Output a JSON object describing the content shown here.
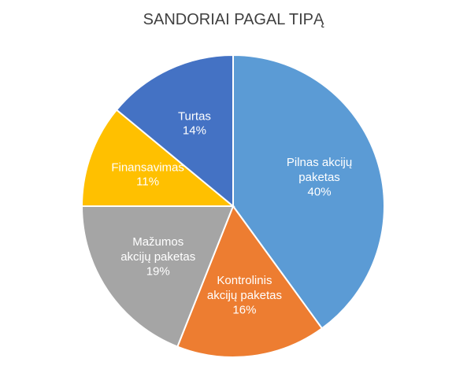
{
  "chart_data": {
    "type": "pie",
    "title": "SANDORIAI PAGAL TIPĄ",
    "categories": [
      "Pilnas akcijų paketas",
      "Kontrolinis akcijų paketas",
      "Mažumos akcijų paketas",
      "Finansavimas",
      "Turtas"
    ],
    "values": [
      40,
      16,
      19,
      11,
      14
    ],
    "value_labels": [
      "40%",
      "16%",
      "19%",
      "11%",
      "14%"
    ],
    "colors": [
      "#5b9bd5",
      "#ed7d31",
      "#a5a5a5",
      "#ffc000",
      "#4472c4"
    ]
  }
}
